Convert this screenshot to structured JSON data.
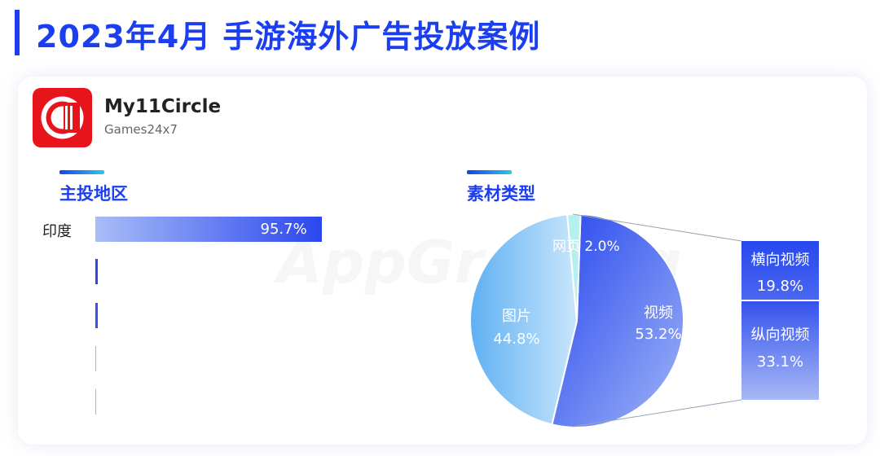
{
  "header": {
    "title": "2023年4月  手游海外广告投放案例"
  },
  "app": {
    "name": "My11Circle",
    "developer": "Games24x7"
  },
  "watermark": "AppGrowing",
  "sections": {
    "region_title": "主投地区",
    "material_title": "素材类型"
  },
  "colors": {
    "accent": "#1b3ff0",
    "logo": "#e8141c"
  },
  "chart_data": [
    {
      "type": "bar",
      "title": "主投地区",
      "categories": [
        "印度",
        "",
        "",
        "",
        ""
      ],
      "values": [
        95.7,
        0.8,
        0.8,
        0.3,
        0.3
      ],
      "value_labels": [
        "95.7%",
        "",
        "",
        "",
        ""
      ]
    },
    {
      "type": "pie",
      "title": "素材类型",
      "slices": [
        {
          "label": "视频",
          "value": 53.2,
          "display": "53.2%"
        },
        {
          "label": "图片",
          "value": 44.8,
          "display": "44.8%"
        },
        {
          "label": "网页",
          "value": 2.0,
          "display": "2.0%"
        }
      ],
      "breakdown": {
        "parent": "视频",
        "items": [
          {
            "label": "横向视频",
            "value": 19.8,
            "display": "19.8%"
          },
          {
            "label": "纵向视频",
            "value": 33.1,
            "display": "33.1%"
          }
        ]
      }
    }
  ]
}
